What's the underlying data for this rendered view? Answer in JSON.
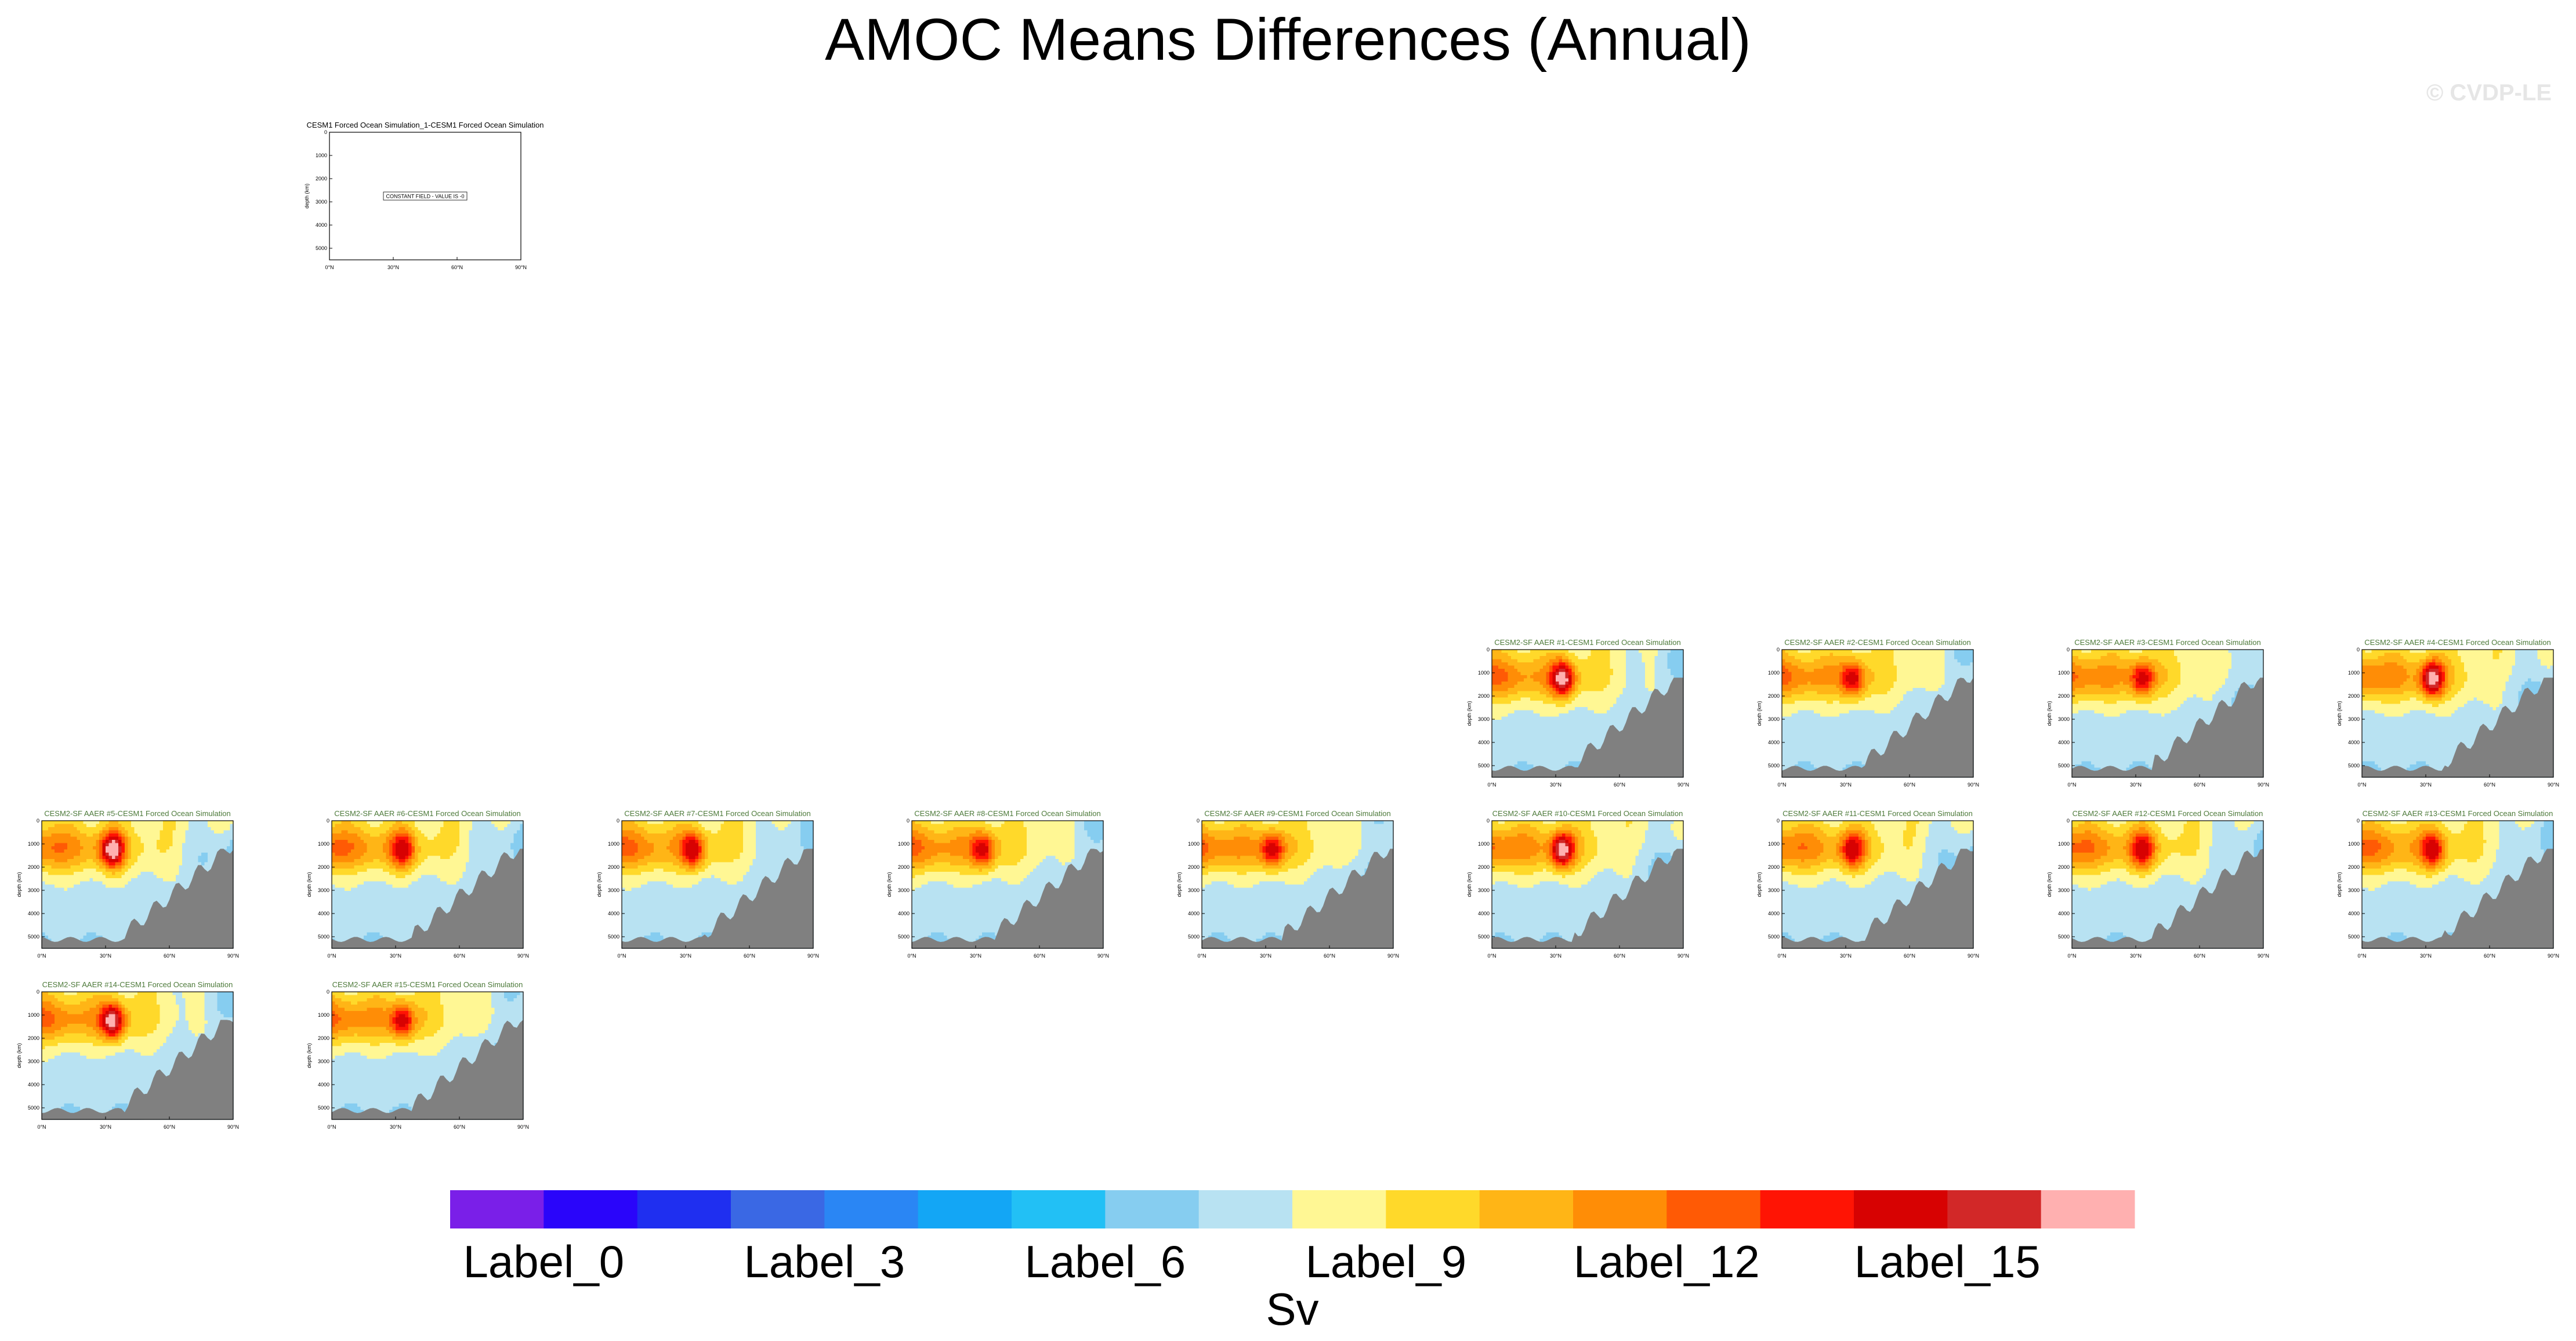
{
  "title": "AMOC Means Differences (Annual)",
  "watermark": "© CVDP-LE",
  "colorbar": {
    "unit_label": "Sv",
    "colors": [
      "#7a1fe8",
      "#2a05fa",
      "#1f2ff0",
      "#3a68e4",
      "#2a86f4",
      "#13a6f5",
      "#22c0f5",
      "#86cdf0",
      "#b8e2f2",
      "#fff794",
      "#ffd92a",
      "#ffb516",
      "#ff8d06",
      "#ff5a05",
      "#ff1404",
      "#d70202",
      "#d22828",
      "#ffb0b0"
    ],
    "tick_labels": [
      {
        "index": 0,
        "text": "Label_0"
      },
      {
        "index": 3,
        "text": "Label_3"
      },
      {
        "index": 6,
        "text": "Label_6"
      },
      {
        "index": 9,
        "text": "Label_9"
      },
      {
        "index": 12,
        "text": "Label_12"
      },
      {
        "index": 15,
        "text": "Label_15"
      }
    ]
  },
  "chart_data": [
    {
      "type": "heatmap",
      "title": "CESM1 Forced Ocean Simulation_1-CESM1 Forced Ocean Simulation",
      "ylabel": "depth (km)",
      "y_ticks": [
        "0",
        "1000",
        "2000",
        "3000",
        "4000",
        "5000"
      ],
      "x_ticks": [
        "0°N",
        "30°N",
        "60°N",
        "90°N"
      ],
      "annotation": "CONSTANT FIELD - VALUE IS -0",
      "constant": true
    },
    {
      "type": "heatmap",
      "title": "CESM2-SF AAER #1-CESM1 Forced Ocean Simulation",
      "ylabel": "depth (km)",
      "y_ticks": [
        "0",
        "1000",
        "2000",
        "3000",
        "4000",
        "5000"
      ],
      "x_ticks": [
        "0°N",
        "30°N",
        "60°N",
        "90°N"
      ],
      "peak_level": 17
    },
    {
      "type": "heatmap",
      "title": "CESM2-SF AAER #2-CESM1 Forced Ocean Simulation",
      "ylabel": "depth (km)",
      "y_ticks": [
        "0",
        "1000",
        "2000",
        "3000",
        "4000",
        "5000"
      ],
      "x_ticks": [
        "0°N",
        "30°N",
        "60°N",
        "90°N"
      ],
      "peak_level": 15
    },
    {
      "type": "heatmap",
      "title": "CESM2-SF AAER #3-CESM1 Forced Ocean Simulation",
      "ylabel": "depth (km)",
      "y_ticks": [
        "0",
        "1000",
        "2000",
        "3000",
        "4000",
        "5000"
      ],
      "x_ticks": [
        "0°N",
        "30°N",
        "60°N",
        "90°N"
      ],
      "peak_level": 15
    },
    {
      "type": "heatmap",
      "title": "CESM2-SF AAER #4-CESM1 Forced Ocean Simulation",
      "ylabel": "depth (km)",
      "y_ticks": [
        "0",
        "1000",
        "2000",
        "3000",
        "4000",
        "5000"
      ],
      "x_ticks": [
        "0°N",
        "30°N",
        "60°N",
        "90°N"
      ],
      "peak_level": 17
    },
    {
      "type": "heatmap",
      "title": "CESM2-SF AAER #5-CESM1 Forced Ocean Simulation",
      "ylabel": "depth (km)",
      "y_ticks": [
        "0",
        "1000",
        "2000",
        "3000",
        "4000",
        "5000"
      ],
      "x_ticks": [
        "0°N",
        "30°N",
        "60°N",
        "90°N"
      ],
      "peak_level": 17
    },
    {
      "type": "heatmap",
      "title": "CESM2-SF AAER #6-CESM1 Forced Ocean Simulation",
      "ylabel": "depth (km)",
      "y_ticks": [
        "0",
        "1000",
        "2000",
        "3000",
        "4000",
        "5000"
      ],
      "x_ticks": [
        "0°N",
        "30°N",
        "60°N",
        "90°N"
      ],
      "peak_level": 15
    },
    {
      "type": "heatmap",
      "title": "CESM2-SF AAER #7-CESM1 Forced Ocean Simulation",
      "ylabel": "depth (km)",
      "y_ticks": [
        "0",
        "1000",
        "2000",
        "3000",
        "4000",
        "5000"
      ],
      "x_ticks": [
        "0°N",
        "30°N",
        "60°N",
        "90°N"
      ],
      "peak_level": 15
    },
    {
      "type": "heatmap",
      "title": "CESM2-SF AAER #8-CESM1 Forced Ocean Simulation",
      "ylabel": "depth (km)",
      "y_ticks": [
        "0",
        "1000",
        "2000",
        "3000",
        "4000",
        "5000"
      ],
      "x_ticks": [
        "0°N",
        "30°N",
        "60°N",
        "90°N"
      ],
      "peak_level": 15
    },
    {
      "type": "heatmap",
      "title": "CESM2-SF AAER #9-CESM1 Forced Ocean Simulation",
      "ylabel": "depth (km)",
      "y_ticks": [
        "0",
        "1000",
        "2000",
        "3000",
        "4000",
        "5000"
      ],
      "x_ticks": [
        "0°N",
        "30°N",
        "60°N",
        "90°N"
      ],
      "peak_level": 15
    },
    {
      "type": "heatmap",
      "title": "CESM2-SF AAER #10-CESM1 Forced Ocean Simulation",
      "ylabel": "depth (km)",
      "y_ticks": [
        "0",
        "1000",
        "2000",
        "3000",
        "4000",
        "5000"
      ],
      "x_ticks": [
        "0°N",
        "30°N",
        "60°N",
        "90°N"
      ],
      "peak_level": 17
    },
    {
      "type": "heatmap",
      "title": "CESM2-SF AAER #11-CESM1 Forced Ocean Simulation",
      "ylabel": "depth (km)",
      "y_ticks": [
        "0",
        "1000",
        "2000",
        "3000",
        "4000",
        "5000"
      ],
      "x_ticks": [
        "0°N",
        "30°N",
        "60°N",
        "90°N"
      ],
      "peak_level": 15
    },
    {
      "type": "heatmap",
      "title": "CESM2-SF AAER #12-CESM1 Forced Ocean Simulation",
      "ylabel": "depth (km)",
      "y_ticks": [
        "0",
        "1000",
        "2000",
        "3000",
        "4000",
        "5000"
      ],
      "x_ticks": [
        "0°N",
        "30°N",
        "60°N",
        "90°N"
      ],
      "peak_level": 15
    },
    {
      "type": "heatmap",
      "title": "CESM2-SF AAER #13-CESM1 Forced Ocean Simulation",
      "ylabel": "depth (km)",
      "y_ticks": [
        "0",
        "1000",
        "2000",
        "3000",
        "4000",
        "5000"
      ],
      "x_ticks": [
        "0°N",
        "30°N",
        "60°N",
        "90°N"
      ],
      "peak_level": 15
    },
    {
      "type": "heatmap",
      "title": "CESM2-SF AAER #14-CESM1 Forced Ocean Simulation",
      "ylabel": "depth (km)",
      "y_ticks": [
        "0",
        "1000",
        "2000",
        "3000",
        "4000",
        "5000"
      ],
      "x_ticks": [
        "0°N",
        "30°N",
        "60°N",
        "90°N"
      ],
      "peak_level": 17
    },
    {
      "type": "heatmap",
      "title": "CESM2-SF AAER #15-CESM1 Forced Ocean Simulation",
      "ylabel": "depth (km)",
      "y_ticks": [
        "0",
        "1000",
        "2000",
        "3000",
        "4000",
        "5000"
      ],
      "x_ticks": [
        "0°N",
        "30°N",
        "60°N",
        "90°N"
      ],
      "peak_level": 15
    }
  ]
}
